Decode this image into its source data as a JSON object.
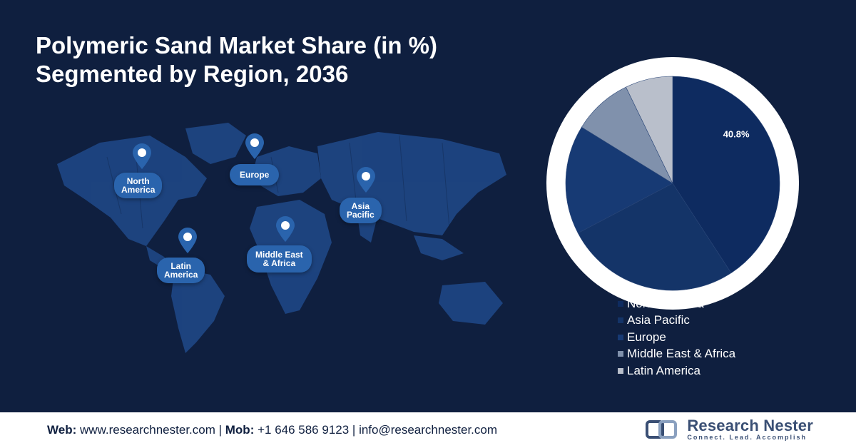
{
  "title": {
    "line1": "Polymeric Sand Market Share (in %)",
    "line2": "Segmented by Region, 2036"
  },
  "map": {
    "regions": [
      {
        "label": "North\nAmerica"
      },
      {
        "label": "Europe"
      },
      {
        "label": "Asia\nPacific"
      },
      {
        "label": "Latin\nAmerica"
      },
      {
        "label": "Middle East\n& Africa"
      }
    ]
  },
  "chart_data": {
    "type": "pie",
    "title": "",
    "categories": [
      "North America",
      "Asia Pacific",
      "Europe",
      "Middle East & Africa",
      "Latin America"
    ],
    "values": [
      40.8,
      26.5,
      16.5,
      9.0,
      7.2
    ],
    "colors": [
      "#0e2b60",
      "#143468",
      "#173a74",
      "#8091ac",
      "#b9bfcb"
    ],
    "data_labels": [
      "40.8%",
      "",
      "",
      "",
      ""
    ],
    "legend_position": "bottom-right"
  },
  "footer": {
    "web_label": "Web:",
    "web_value": " www.researchnester.com",
    "sep1": " | ",
    "mob_label": "Mob:",
    "mob_value": " +1 646 586 9123",
    "sep2": " | ",
    "email_value": "info@researchnester.com",
    "brand_name": "Research Nester",
    "brand_tagline": "Connect. Lead. Accomplish"
  },
  "colors": {
    "background": "#0f1f3f",
    "accent": "#2a64ad"
  }
}
